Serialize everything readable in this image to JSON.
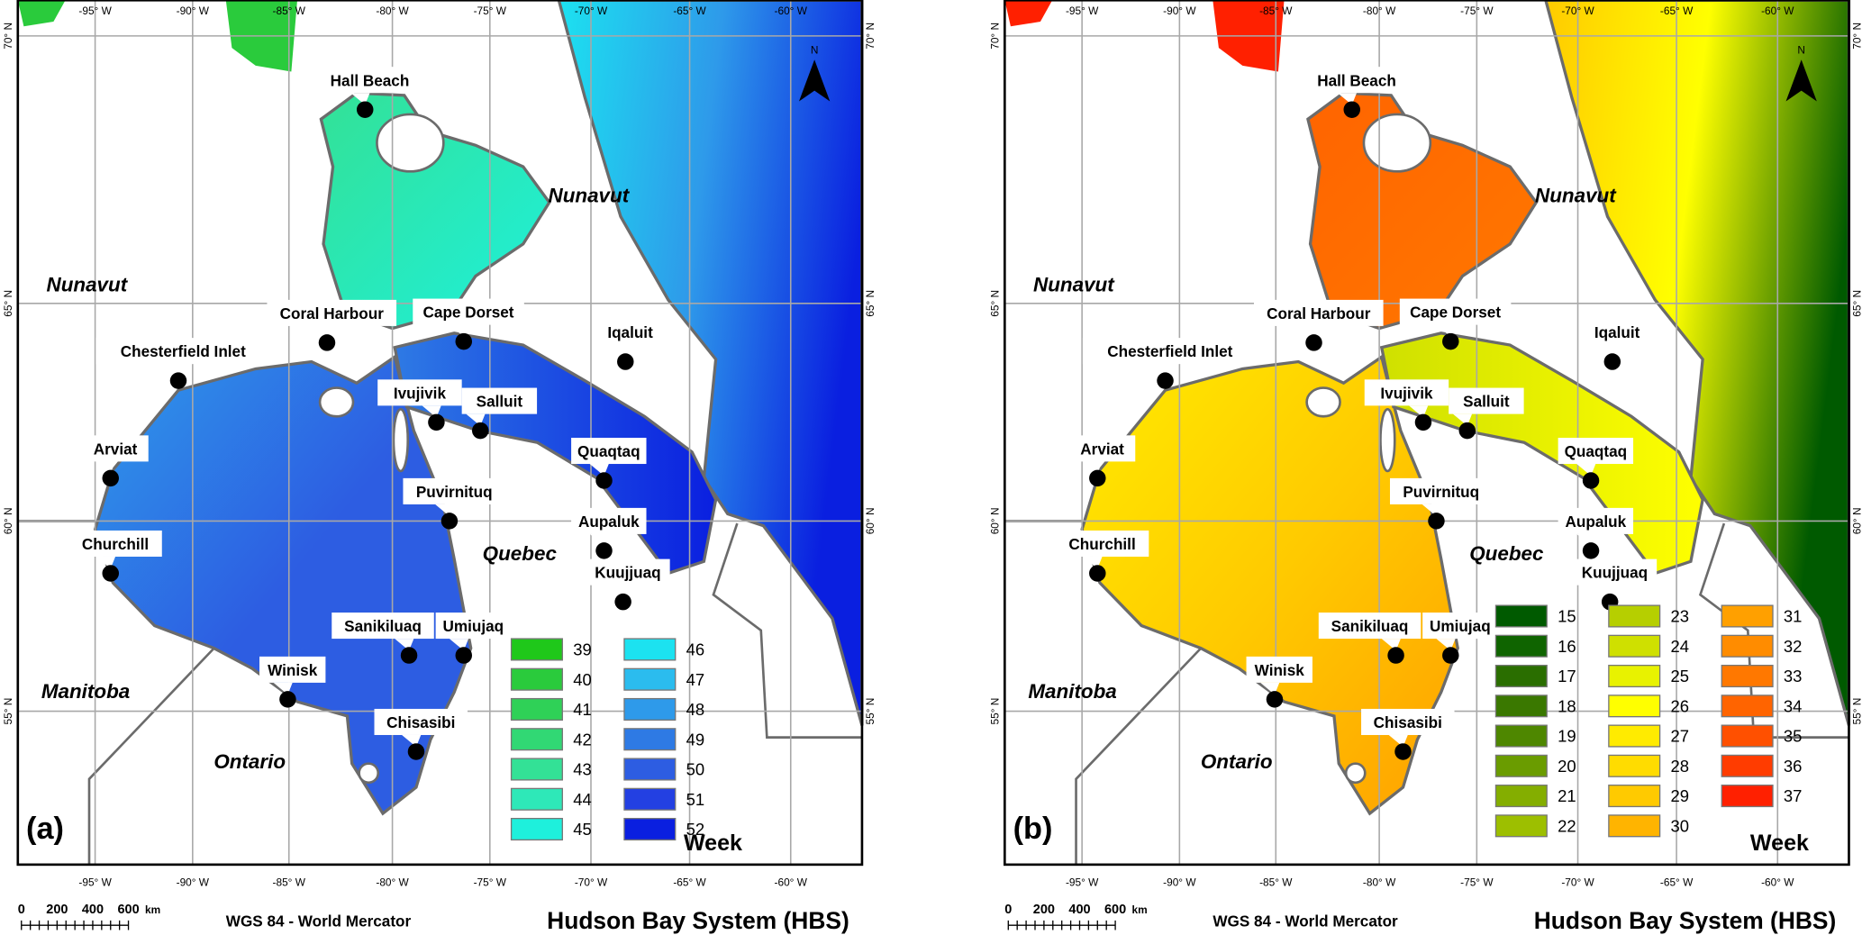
{
  "panels": [
    {
      "label": "(a)",
      "legend_title": "Week",
      "legend": [
        {
          "value": "39",
          "color": "#1fc81a"
        },
        {
          "value": "40",
          "color": "#2acb3c"
        },
        {
          "value": "41",
          "color": "#2fd157"
        },
        {
          "value": "42",
          "color": "#31d874"
        },
        {
          "value": "43",
          "color": "#33e196"
        },
        {
          "value": "44",
          "color": "#2ee8b8"
        },
        {
          "value": "45",
          "color": "#1ef0dc"
        },
        {
          "value": "46",
          "color": "#1ce2f0"
        },
        {
          "value": "47",
          "color": "#2bbcee"
        },
        {
          "value": "48",
          "color": "#2e9aea"
        },
        {
          "value": "49",
          "color": "#2e7ae4"
        },
        {
          "value": "50",
          "color": "#2d5de2"
        },
        {
          "value": "51",
          "color": "#2340e2"
        },
        {
          "value": "52",
          "color": "#0a1fe0"
        }
      ],
      "legend_columns": 2,
      "fill": {
        "hudson_bay": [
          "#2e9aea",
          "#2d5de2",
          "#2d5de2"
        ],
        "foxe_basin": [
          "#33e196",
          "#1ef0dc"
        ],
        "strait": [
          "#2e7ae4",
          "#0a1fe0"
        ],
        "labrador": [
          "#1ce2f0",
          "#2e9aea",
          "#0a1fe0"
        ],
        "northwest": "#2acb3c"
      }
    },
    {
      "label": "(b)",
      "legend_title": "Week",
      "legend": [
        {
          "value": "15",
          "color": "#005a00"
        },
        {
          "value": "16",
          "color": "#0f6400"
        },
        {
          "value": "17",
          "color": "#2a6e00"
        },
        {
          "value": "18",
          "color": "#3a7800"
        },
        {
          "value": "19",
          "color": "#4e8700"
        },
        {
          "value": "20",
          "color": "#6a9c00"
        },
        {
          "value": "21",
          "color": "#84ae00"
        },
        {
          "value": "22",
          "color": "#9dbf00"
        },
        {
          "value": "23",
          "color": "#b6cf00"
        },
        {
          "value": "24",
          "color": "#cfe000"
        },
        {
          "value": "25",
          "color": "#e8f200"
        },
        {
          "value": "26",
          "color": "#ffff00"
        },
        {
          "value": "27",
          "color": "#ffeb00"
        },
        {
          "value": "28",
          "color": "#ffdc00"
        },
        {
          "value": "29",
          "color": "#ffca00"
        },
        {
          "value": "30",
          "color": "#ffb400"
        },
        {
          "value": "31",
          "color": "#ffa000"
        },
        {
          "value": "32",
          "color": "#ff8c00"
        },
        {
          "value": "33",
          "color": "#ff7800"
        },
        {
          "value": "34",
          "color": "#ff6400"
        },
        {
          "value": "35",
          "color": "#ff5000"
        },
        {
          "value": "36",
          "color": "#ff3c00"
        },
        {
          "value": "37",
          "color": "#ff2000"
        }
      ],
      "legend_columns": 3,
      "fill": {
        "hudson_bay": [
          "#ffeb00",
          "#ffca00",
          "#ffa000"
        ],
        "foxe_basin": [
          "#ff6400",
          "#ff7800"
        ],
        "strait": [
          "#cfe000",
          "#ffff00"
        ],
        "labrador": [
          "#ffca00",
          "#ffff00",
          "#005a00"
        ],
        "northwest": "#ff2000"
      }
    }
  ],
  "towns": [
    "Hall Beach",
    "Coral Harbour",
    "Cape Dorset",
    "Iqaluit",
    "Chesterfield Inlet",
    "Ivujivik",
    "Salluit",
    "Arviat",
    "Quaqtaq",
    "Puvirnituq",
    "Aupaluk",
    "Churchill",
    "Kuujjuaq",
    "Sanikiluaq",
    "Umiujaq",
    "Winisk",
    "Chisasibi"
  ],
  "regions": [
    "Nunavut",
    "Nunavut",
    "Quebec",
    "Manitoba",
    "Ontario"
  ],
  "longitude_ticks": [
    "-95° W",
    "-90° W",
    "-85° W",
    "-80° W",
    "-75° W",
    "-70° W",
    "-65° W",
    "-60° W"
  ],
  "latitude_ticks": [
    "70° N",
    "65° N",
    "60° N",
    "55° N"
  ],
  "north_arrow": "N",
  "scale_bar": {
    "labels": [
      "0",
      "200",
      "400",
      "600"
    ],
    "unit": "km"
  },
  "projection": "WGS 84 - World Mercator",
  "title": "Hudson Bay System (HBS)"
}
